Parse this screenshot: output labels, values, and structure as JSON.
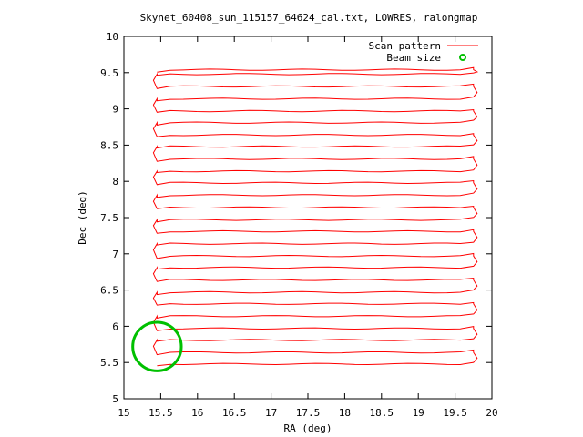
{
  "chart_data": {
    "type": "line",
    "title": "Skynet_60408_sun_115157_64624_cal.txt, LOWRES, ralongmap",
    "xlabel": "RA (deg)",
    "ylabel": "Dec (deg)",
    "xlim": [
      15,
      20
    ],
    "ylim": [
      5,
      10
    ],
    "x_ticks": [
      "15",
      "15.5",
      "16",
      "16.5",
      "17",
      "17.5",
      "18",
      "18.5",
      "19",
      "19.5",
      "20"
    ],
    "y_ticks": [
      "5",
      "5.5",
      "6",
      "6.5",
      "7",
      "7.5",
      "8",
      "8.5",
      "9",
      "9.5",
      "10"
    ],
    "grid": false,
    "legend_position": "top-right",
    "colors": {
      "scan": "#ff0000",
      "beam": "#00c000"
    },
    "series": [
      {
        "name": "Scan pattern",
        "style": "boustrophedon raster, rows along RA",
        "ra_start": 15.45,
        "ra_end": 19.75,
        "dec_rows": [
          5.48,
          5.64,
          5.81,
          5.97,
          6.14,
          6.31,
          6.47,
          6.64,
          6.81,
          6.97,
          7.14,
          7.31,
          7.47,
          7.64,
          7.81,
          7.98,
          8.14,
          8.31,
          8.48,
          8.64,
          8.81,
          8.97,
          9.14,
          9.31,
          9.48,
          9.54
        ]
      },
      {
        "name": "Beam size",
        "center": [
          15.45,
          5.72
        ],
        "radius_deg": 0.33
      }
    ]
  }
}
